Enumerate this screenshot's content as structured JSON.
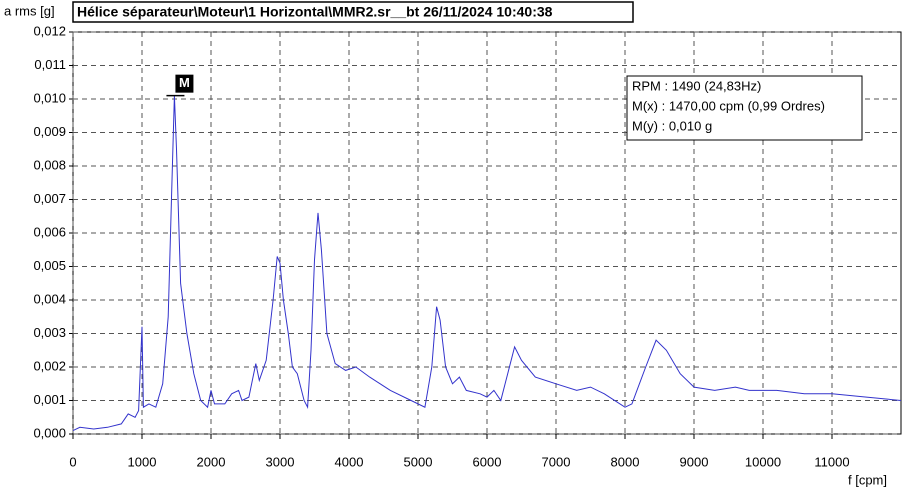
{
  "chart_data": {
    "type": "line",
    "title": "Hélice séparateur\\Moteur\\1 Horizontal\\MMR2.sr__bt 26/11/2024 10:40:38",
    "y_label": "a rms [g]",
    "x_label": "f [cpm]",
    "x": [
      0,
      100,
      300,
      500,
      700,
      800,
      900,
      950,
      1000,
      1020,
      1100,
      1200,
      1300,
      1380,
      1440,
      1470,
      1500,
      1560,
      1650,
      1750,
      1850,
      1950,
      2000,
      2050,
      2200,
      2300,
      2400,
      2450,
      2550,
      2650,
      2700,
      2800,
      2900,
      2960,
      3000,
      3050,
      3120,
      3180,
      3250,
      3350,
      3400,
      3450,
      3500,
      3550,
      3600,
      3680,
      3800,
      3950,
      4100,
      4300,
      4600,
      4900,
      5100,
      5200,
      5270,
      5320,
      5400,
      5500,
      5600,
      5700,
      5900,
      6000,
      6100,
      6200,
      6300,
      6400,
      6500,
      6700,
      7000,
      7300,
      7500,
      7700,
      8000,
      8100,
      8300,
      8450,
      8600,
      8800,
      9000,
      9300,
      9600,
      9800,
      10200,
      10600,
      11000,
      11500,
      12000
    ],
    "series": [
      {
        "color": "#3333cc",
        "values": [
          0.0001,
          0.0002,
          0.00015,
          0.0002,
          0.0003,
          0.0006,
          0.0005,
          0.0007,
          0.0032,
          0.0008,
          0.0009,
          0.0008,
          0.0015,
          0.0035,
          0.008,
          0.0101,
          0.0085,
          0.0045,
          0.003,
          0.0018,
          0.001,
          0.0008,
          0.0013,
          0.0009,
          0.0009,
          0.0012,
          0.0013,
          0.001,
          0.0011,
          0.0021,
          0.0016,
          0.0022,
          0.004,
          0.0053,
          0.0051,
          0.004,
          0.003,
          0.002,
          0.0018,
          0.001,
          0.0008,
          0.0025,
          0.0052,
          0.0066,
          0.0055,
          0.003,
          0.0021,
          0.0019,
          0.002,
          0.0017,
          0.0013,
          0.001,
          0.0008,
          0.002,
          0.0038,
          0.0034,
          0.002,
          0.0015,
          0.0017,
          0.0013,
          0.0012,
          0.0011,
          0.0013,
          0.001,
          0.0018,
          0.0026,
          0.0022,
          0.0017,
          0.0015,
          0.0013,
          0.0014,
          0.0012,
          0.0008,
          0.0009,
          0.002,
          0.0028,
          0.0025,
          0.0018,
          0.0014,
          0.0013,
          0.0014,
          0.0013,
          0.0013,
          0.0012,
          0.0012,
          0.0011,
          0.001
        ]
      }
    ],
    "xlim": [
      0,
      12000
    ],
    "ylim": [
      0,
      0.012
    ],
    "xticks": [
      0,
      1000,
      2000,
      3000,
      4000,
      5000,
      6000,
      7000,
      8000,
      9000,
      10000,
      11000
    ],
    "yticks": [
      {
        "value": 0,
        "label": "0,000"
      },
      {
        "value": 0.001,
        "label": "0,001"
      },
      {
        "value": 0.002,
        "label": "0,002"
      },
      {
        "value": 0.003,
        "label": "0,003"
      },
      {
        "value": 0.004,
        "label": "0,004"
      },
      {
        "value": 0.005,
        "label": "0,005"
      },
      {
        "value": 0.006,
        "label": "0,006"
      },
      {
        "value": 0.007,
        "label": "0,007"
      },
      {
        "value": 0.008,
        "label": "0,008"
      },
      {
        "value": 0.009,
        "label": "0,009"
      },
      {
        "value": 0.01,
        "label": "0,010"
      },
      {
        "value": 0.011,
        "label": "0,011"
      },
      {
        "value": 0.012,
        "label": "0,012"
      }
    ],
    "grid": true,
    "marker": {
      "label": "M",
      "x": 1470,
      "y": 0.0101
    },
    "info": [
      "RPM : 1490 (24,83Hz)",
      "M(x) : 1470,00 cpm (0,99 Ordres)",
      "M(y) : 0,010 g"
    ]
  }
}
